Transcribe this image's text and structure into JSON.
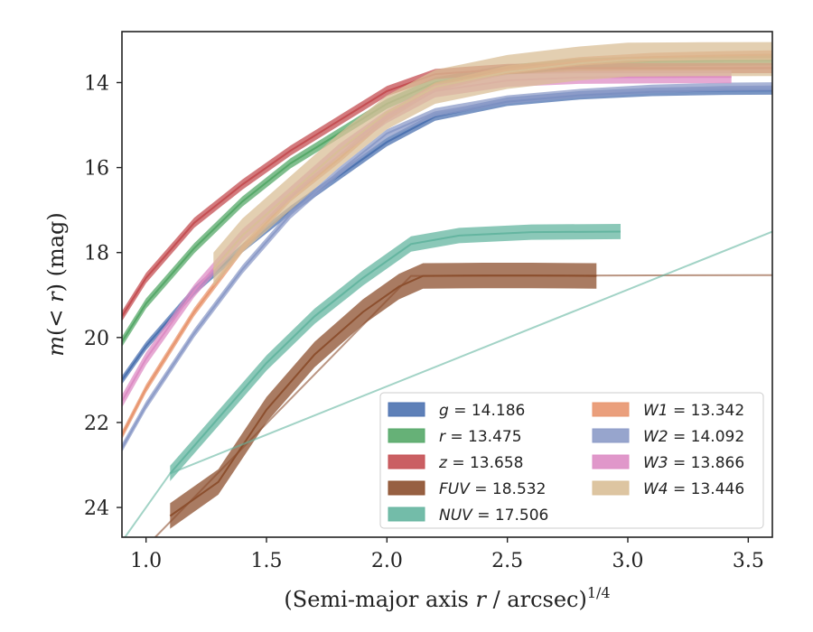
{
  "chart_data": {
    "type": "line",
    "title": "",
    "xlabel_parts": [
      "(Semi-major axis ",
      "r",
      " / arcsec)",
      "1/4"
    ],
    "ylabel_parts": [
      "m",
      "(< ",
      "r",
      ") (mag)"
    ],
    "xlim": [
      0.9,
      3.6
    ],
    "ylim": [
      24.7,
      12.8
    ],
    "y_inverted": true,
    "xticks": [
      1.0,
      1.5,
      2.0,
      2.5,
      3.0,
      3.5
    ],
    "xtick_labels": [
      "1.0",
      "1.5",
      "2.0",
      "2.5",
      "3.0",
      "3.5"
    ],
    "yticks": [
      14,
      16,
      18,
      20,
      22,
      24
    ],
    "ytick_labels": [
      "14",
      "16",
      "18",
      "20",
      "22",
      "24"
    ],
    "legend_position": "lower-right",
    "legend_columns": 2,
    "series": [
      {
        "name": "g",
        "label_value": "= 14.186",
        "color": "#4c72b0",
        "x": [
          0.9,
          1.0,
          1.2,
          1.4,
          1.6,
          1.8,
          2.0,
          2.2,
          2.5,
          2.8,
          3.1,
          3.4,
          3.6
        ],
        "y": [
          21.0,
          20.2,
          18.9,
          17.9,
          17.0,
          16.2,
          15.4,
          14.8,
          14.45,
          14.3,
          14.22,
          14.19,
          14.186
        ],
        "band": 0.1
      },
      {
        "name": "r",
        "label_value": "= 13.475",
        "color": "#55a868",
        "x": [
          0.9,
          1.0,
          1.2,
          1.4,
          1.6,
          1.8,
          2.0,
          2.2,
          2.5,
          2.8,
          3.1,
          3.4,
          3.6
        ],
        "y": [
          20.1,
          19.2,
          17.9,
          16.8,
          15.9,
          15.2,
          14.5,
          14.0,
          13.7,
          13.55,
          13.5,
          13.48,
          13.475
        ],
        "band": 0.12
      },
      {
        "name": "z",
        "label_value": "= 13.658",
        "color": "#c44e52",
        "x": [
          0.9,
          1.0,
          1.2,
          1.4,
          1.6,
          1.8,
          2.0,
          2.2,
          2.5,
          2.8,
          3.1,
          3.4,
          3.6
        ],
        "y": [
          19.5,
          18.6,
          17.3,
          16.4,
          15.6,
          14.9,
          14.2,
          13.8,
          13.68,
          13.66,
          13.66,
          13.66,
          13.658
        ],
        "band": 0.12
      },
      {
        "name": "FUV",
        "label_value": "= 18.532",
        "color": "#8c4f2e",
        "x": [
          1.1,
          1.3,
          1.5,
          1.7,
          1.9,
          2.05,
          2.15,
          2.4,
          2.6,
          2.87
        ],
        "y": [
          24.2,
          23.4,
          21.7,
          20.4,
          19.4,
          18.8,
          18.55,
          18.54,
          18.54,
          18.55
        ],
        "band": 0.3,
        "ext_x": [
          0.9,
          2.1,
          3.6
        ],
        "ext_y": [
          25.5,
          18.55,
          18.532
        ]
      },
      {
        "name": "NUV",
        "label_value": "= 17.506",
        "color": "#64b5a0",
        "x": [
          1.1,
          1.3,
          1.5,
          1.7,
          1.9,
          2.1,
          2.3,
          2.6,
          2.97
        ],
        "y": [
          23.2,
          21.9,
          20.6,
          19.5,
          18.6,
          17.8,
          17.6,
          17.52,
          17.506
        ],
        "band": 0.18,
        "ext_x": [
          0.9,
          1.1,
          3.6
        ],
        "ext_y": [
          24.8,
          23.2,
          17.506
        ]
      },
      {
        "name": "W1",
        "label_value": "= 13.342",
        "color": "#e8956e",
        "x": [
          0.9,
          1.0,
          1.2,
          1.4,
          1.6,
          1.8,
          2.0,
          2.2,
          2.5,
          2.8,
          3.1,
          3.4,
          3.6
        ],
        "y": [
          22.3,
          21.2,
          19.4,
          17.9,
          16.7,
          15.8,
          14.8,
          14.1,
          13.7,
          13.5,
          13.4,
          13.36,
          13.342
        ],
        "band": 0.1
      },
      {
        "name": "W2",
        "label_value": "= 14.092",
        "color": "#8c9bc8",
        "x": [
          0.9,
          1.0,
          1.2,
          1.4,
          1.6,
          1.8,
          2.0,
          2.2,
          2.5,
          2.8,
          3.1,
          3.4,
          3.6
        ],
        "y": [
          22.6,
          21.6,
          19.9,
          18.4,
          17.1,
          16.1,
          15.2,
          14.7,
          14.4,
          14.25,
          14.15,
          14.1,
          14.092
        ],
        "band": 0.1
      },
      {
        "name": "W3",
        "label_value": "= 13.866",
        "color": "#dd8cc4",
        "x": [
          0.9,
          1.0,
          1.2,
          1.4,
          1.6,
          1.8,
          2.0,
          2.2,
          2.5,
          2.8,
          3.1,
          3.43
        ],
        "y": [
          21.5,
          20.5,
          18.9,
          17.6,
          16.6,
          15.6,
          14.8,
          14.2,
          13.95,
          13.88,
          13.87,
          13.866
        ],
        "band": 0.15
      },
      {
        "name": "W4",
        "label_value": "= 13.446",
        "color": "#d9bf97",
        "x": [
          1.28,
          1.4,
          1.6,
          1.8,
          2.0,
          2.2,
          2.5,
          2.8,
          3.0,
          3.3,
          3.6
        ],
        "y": [
          18.4,
          17.6,
          16.6,
          15.6,
          14.7,
          14.1,
          13.75,
          13.55,
          13.46,
          13.45,
          13.446
        ],
        "band": 0.4
      }
    ]
  }
}
